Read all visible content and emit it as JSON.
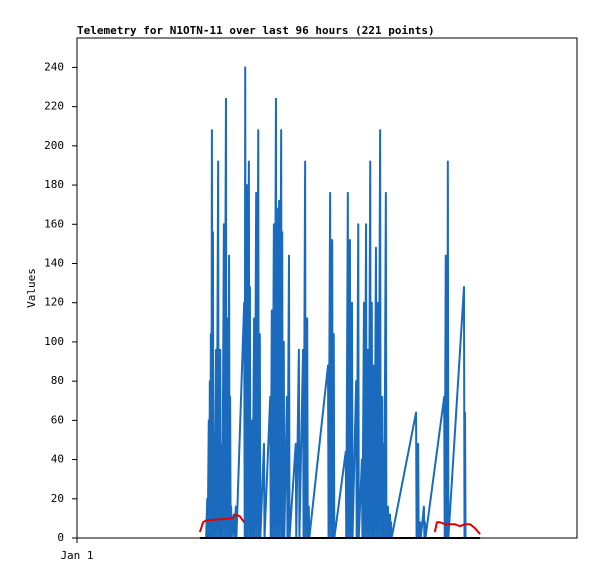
{
  "chart_data": {
    "type": "line",
    "title": "Telemetry for N1OTN-11 over last 96 hours (221 points)",
    "ylabel": "Values",
    "xlim": [
      0,
      96
    ],
    "xticks": [
      {
        "value": 0,
        "label": "Jan 1"
      }
    ],
    "ylim": [
      0,
      255
    ],
    "yticks": [
      0,
      20,
      40,
      60,
      80,
      100,
      120,
      140,
      160,
      180,
      200,
      220,
      240
    ],
    "grid": false,
    "series": [
      {
        "color": "#1a6bbd",
        "x": [
          24.8,
          25.0,
          25.1,
          25.3,
          25.4,
          25.5,
          25.6,
          25.7,
          25.8,
          25.9,
          26.0,
          26.1,
          26.2,
          26.3,
          26.4,
          26.7,
          26.8,
          27.1,
          27.2,
          27.5,
          27.6,
          27.8,
          27.9,
          28.2,
          28.3,
          28.6,
          28.7,
          29.0,
          29.1,
          29.2,
          29.3,
          29.4,
          29.5,
          29.6,
          29.7,
          30.1,
          30.2,
          30.5,
          30.6,
          32.1,
          32.2,
          32.3,
          32.4,
          32.6,
          32.7,
          33.0,
          33.1,
          33.2,
          33.3,
          33.6,
          33.7,
          34.0,
          34.1,
          34.4,
          34.5,
          34.8,
          34.9,
          35.1,
          35.2,
          35.9,
          36.0,
          37.1,
          37.2,
          37.4,
          37.5,
          37.8,
          37.9,
          38.2,
          38.3,
          38.4,
          38.5,
          38.8,
          38.9,
          39.2,
          39.3,
          39.4,
          39.5,
          39.7,
          39.8,
          40.3,
          40.4,
          40.7,
          40.8,
          42.0,
          42.1,
          42.6,
          42.7,
          43.4,
          43.5,
          43.8,
          43.9,
          44.2,
          44.3,
          44.5,
          44.6,
          48.2,
          48.3,
          48.6,
          48.7,
          49.0,
          49.1,
          49.3,
          49.4,
          51.6,
          51.7,
          52.0,
          52.1,
          52.4,
          52.5,
          52.8,
          52.9,
          53.6,
          53.7,
          54.0,
          54.1,
          54.7,
          54.8,
          55.1,
          55.2,
          55.5,
          55.6,
          55.9,
          56.0,
          56.3,
          56.4,
          56.6,
          56.7,
          57.0,
          57.1,
          57.4,
          57.5,
          57.8,
          57.9,
          58.2,
          58.3,
          58.6,
          58.7,
          58.9,
          59.0,
          59.3,
          59.4,
          59.7,
          59.8,
          60.1,
          60.2,
          60.3,
          60.4,
          65.1,
          65.2,
          65.5,
          65.6,
          65.9,
          66.0,
          66.6,
          66.7,
          66.8,
          66.9,
          70.5,
          70.6,
          70.8,
          70.9,
          71.0,
          71.1,
          71.2,
          71.3,
          74.3,
          74.4,
          74.5,
          74.6
        ],
        "values": [
          0,
          20,
          0,
          60,
          0,
          80,
          0,
          104,
          0,
          208,
          0,
          156,
          0,
          52,
          0,
          96,
          0,
          192,
          0,
          96,
          0,
          48,
          0,
          160,
          0,
          224,
          0,
          112,
          0,
          144,
          0,
          72,
          0,
          16,
          0,
          12,
          0,
          16,
          0,
          120,
          0,
          240,
          0,
          180,
          0,
          192,
          0,
          128,
          0,
          60,
          0,
          112,
          0,
          176,
          0,
          208,
          0,
          104,
          0,
          48,
          0,
          72,
          0,
          116,
          0,
          160,
          0,
          224,
          0,
          168,
          0,
          172,
          0,
          208,
          0,
          156,
          0,
          100,
          0,
          72,
          0,
          144,
          0,
          48,
          0,
          96,
          0,
          96,
          0,
          192,
          0,
          112,
          0,
          16,
          0,
          88,
          0,
          176,
          0,
          152,
          0,
          104,
          0,
          44,
          0,
          176,
          0,
          152,
          0,
          120,
          0,
          80,
          0,
          160,
          0,
          40,
          0,
          120,
          0,
          160,
          0,
          96,
          0,
          192,
          0,
          120,
          0,
          88,
          0,
          148,
          0,
          120,
          0,
          208,
          0,
          72,
          0,
          48,
          0,
          176,
          0,
          16,
          0,
          12,
          0,
          8,
          0,
          64,
          0,
          48,
          0,
          8,
          0,
          16,
          0,
          8,
          0,
          72,
          0,
          144,
          0,
          96,
          0,
          192,
          0,
          128,
          0,
          64,
          0
        ]
      },
      {
        "color": "#e00000",
        "x": [
          23.6,
          24.2,
          24.8,
          29.8,
          30.5,
          31.3,
          32.1,
          50.0,
          68.7,
          69.1,
          69.7,
          70.7,
          71.6,
          72.6,
          73.5,
          74.5,
          75.5,
          76.4,
          77.4
        ],
        "values": [
          3,
          8,
          9,
          10,
          12,
          11,
          8,
          null,
          3,
          8,
          8,
          7,
          7,
          7,
          6,
          7,
          7,
          5,
          2
        ]
      },
      {
        "color": "#000000",
        "x": [
          23.6,
          77.4
        ],
        "values": [
          0,
          0
        ]
      }
    ]
  }
}
